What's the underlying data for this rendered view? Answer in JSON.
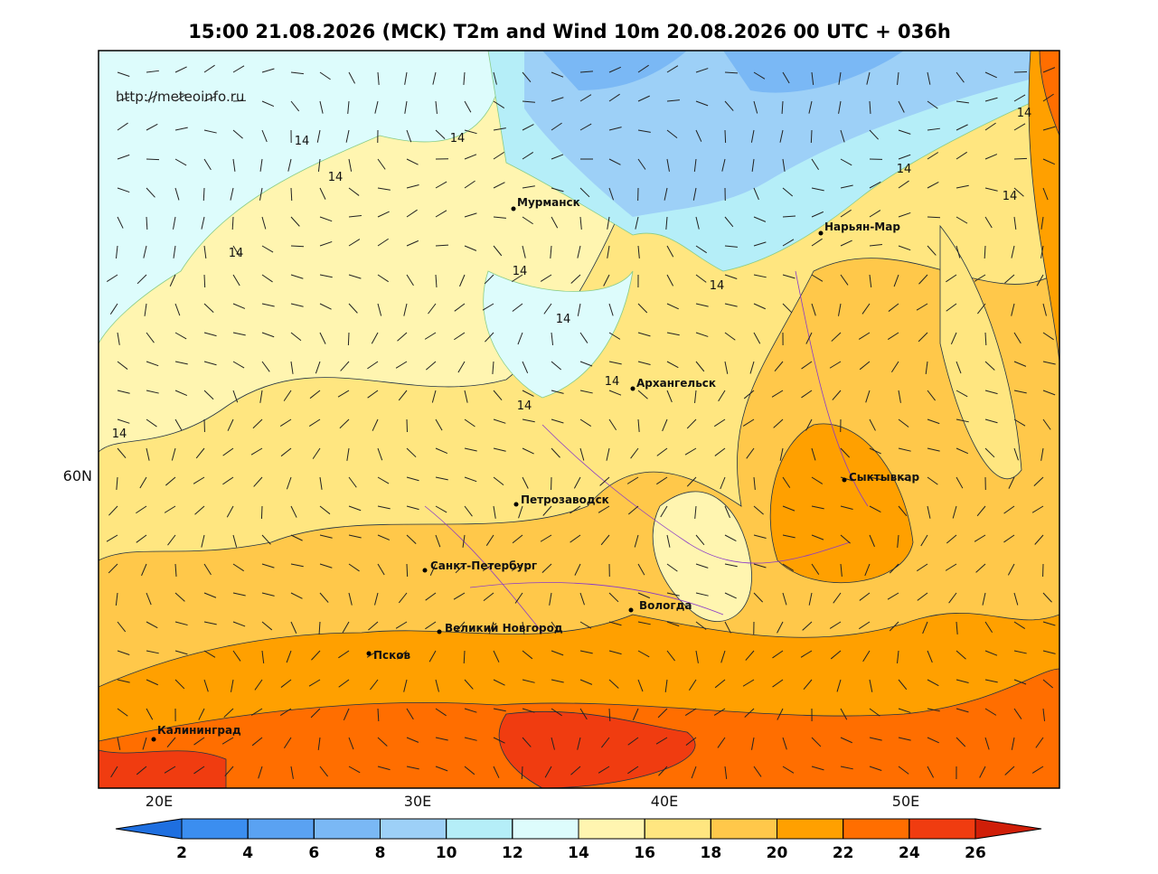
{
  "title": "15:00 21.08.2026 (MCK) T2m and Wind 10m 20.08.2026 00 UTC + 036h",
  "source": "http://meteoinfo.ru",
  "axes": {
    "x_labels": [
      "20E",
      "30E",
      "40E",
      "50E"
    ],
    "y_labels": [
      "60N"
    ]
  },
  "cities": [
    "Мурманск",
    "Нарьян-Мар",
    "Архангельск",
    "Сыктывкар",
    "Петрозаводск",
    "Санкт-Петербург",
    "Вологда",
    "Великий Новгород",
    "Псков",
    "Калининград"
  ],
  "contour_labels": [
    "14",
    "14",
    "14",
    "14",
    "14",
    "14",
    "14",
    "14",
    "14",
    "14",
    "14",
    "14",
    "14"
  ],
  "colorbar": {
    "ticks": [
      2,
      4,
      6,
      8,
      10,
      12,
      14,
      16,
      18,
      20,
      22,
      24,
      26
    ],
    "colors": [
      "#1e6fe0",
      "#3b8ef0",
      "#5aa2f2",
      "#7ab8f5",
      "#9dd0f7",
      "#b5eef8",
      "#ddfcfc",
      "#fff5b0",
      "#ffe680",
      "#ffc84a",
      "#ffa000",
      "#ff6e00",
      "#f03c10",
      "#d01e08"
    ]
  }
}
